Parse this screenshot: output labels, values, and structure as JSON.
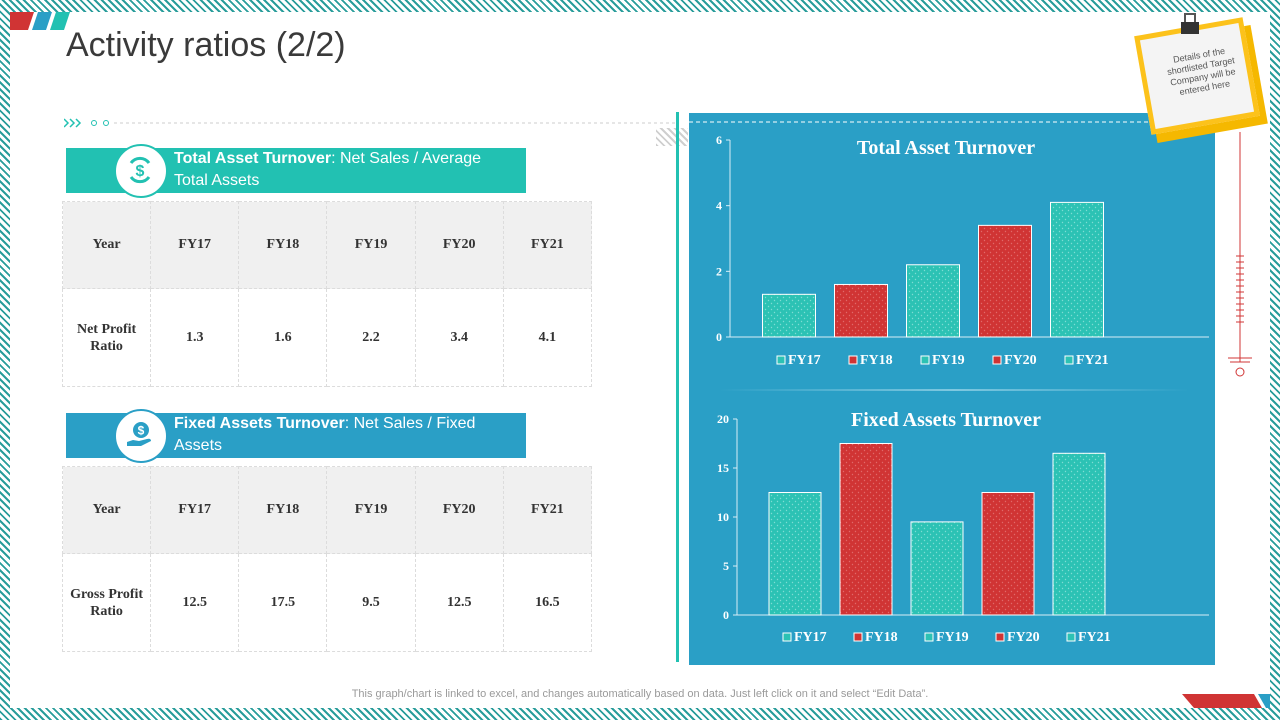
{
  "slide": {
    "title": "Activity ratios (2/2)"
  },
  "section1": {
    "header_bold": "Total Asset Turnover",
    "header_rest": ": Net Sales / Average Total Assets",
    "table": {
      "columns": [
        "Year",
        "FY17",
        "FY18",
        "FY19",
        "FY20",
        "FY21"
      ],
      "row_label": "Net Profit Ratio",
      "values": [
        "1.3",
        "1.6",
        "2.2",
        "3.4",
        "4.1"
      ]
    }
  },
  "section2": {
    "header_bold": "Fixed Assets Turnover",
    "header_rest": ": Net Sales / Fixed Assets",
    "table": {
      "columns": [
        "Year",
        "FY17",
        "FY18",
        "FY19",
        "FY20",
        "FY21"
      ],
      "row_label": "Gross Profit Ratio",
      "values": [
        "12.5",
        "17.5",
        "9.5",
        "12.5",
        "16.5"
      ]
    }
  },
  "note": {
    "text": "Details of the shortlisted Target Company will be entered here"
  },
  "footer": {
    "text": "This graph/chart is linked to excel,  and changes automatically based on data. Just left click on it and select “Edit Data”."
  },
  "colors": {
    "teal": "#22c1b2",
    "blue": "#2a9fc6",
    "red": "#d03434",
    "bar_teal": "#2cc2b4"
  },
  "chart_data": [
    {
      "type": "bar",
      "title": "Total Asset Turnover",
      "categories": [
        "FY17",
        "FY18",
        "FY19",
        "FY20",
        "FY21"
      ],
      "values": [
        1.3,
        1.6,
        2.2,
        3.4,
        4.1
      ],
      "ylim": [
        0,
        6
      ],
      "yticks": [
        0,
        2,
        4,
        6
      ],
      "xlabel": "",
      "ylabel": "",
      "legend": "bottom"
    },
    {
      "type": "bar",
      "title": "Fixed Assets Turnover",
      "categories": [
        "FY17",
        "FY18",
        "FY19",
        "FY20",
        "FY21"
      ],
      "values": [
        12.5,
        17.5,
        9.5,
        12.5,
        16.5
      ],
      "ylim": [
        0,
        20
      ],
      "yticks": [
        0,
        5,
        10,
        15,
        20
      ],
      "xlabel": "",
      "ylabel": "",
      "legend": "bottom"
    }
  ]
}
